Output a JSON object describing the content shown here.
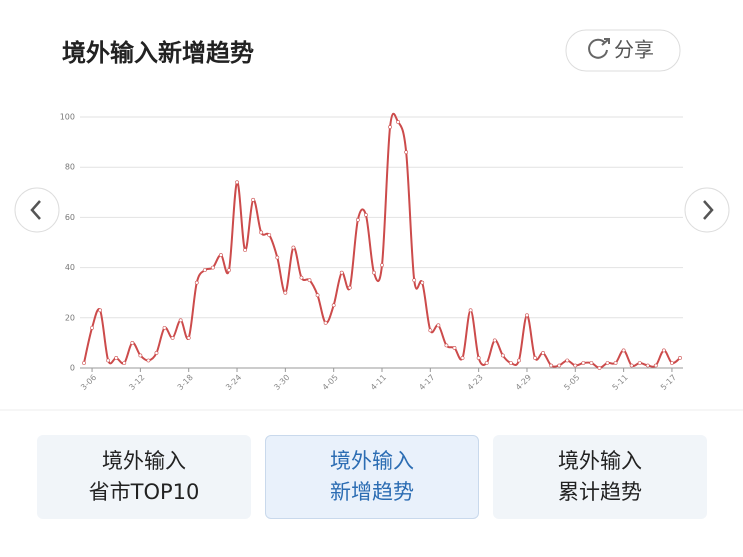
{
  "chart_data": {
    "type": "line",
    "title": "境外输入新增趋势",
    "categories": [
      null,
      "3-06",
      null,
      null,
      null,
      null,
      null,
      "3-12",
      null,
      null,
      null,
      null,
      null,
      "3-18",
      null,
      null,
      null,
      null,
      null,
      "3-24",
      null,
      null,
      null,
      null,
      null,
      "3-30",
      null,
      null,
      null,
      null,
      null,
      "4-05",
      null,
      null,
      null,
      null,
      null,
      "4-11",
      null,
      null,
      null,
      null,
      null,
      "4-17",
      null,
      null,
      null,
      null,
      null,
      "4-23",
      null,
      null,
      null,
      null,
      null,
      "4-29",
      null,
      null,
      null,
      null,
      null,
      "5-05",
      null,
      null,
      null,
      null,
      null,
      "5-11",
      null,
      null,
      null,
      null,
      null,
      "5-17",
      null
    ],
    "values": [
      2,
      16,
      23,
      3,
      4,
      2,
      10,
      5,
      3,
      6,
      16,
      12,
      19,
      12,
      34,
      39,
      40,
      45,
      39,
      74,
      47,
      67,
      54,
      53,
      44,
      30,
      48,
      36,
      35,
      29,
      18,
      25,
      38,
      32,
      59,
      61,
      38,
      41,
      96,
      98,
      86,
      35,
      34,
      15,
      17,
      9,
      8,
      4,
      23,
      4,
      2,
      11,
      5,
      2,
      3,
      21,
      4,
      6,
      1,
      1,
      3,
      1,
      2,
      2,
      0,
      2,
      2,
      7,
      1,
      2,
      1,
      1,
      7,
      2,
      4
    ],
    "color": "#cc4b4b",
    "ylim": [
      0,
      100
    ],
    "yticks": [
      0,
      20,
      40,
      60,
      80,
      100
    ],
    "grid": true
  },
  "share_button": "分享",
  "tabs": [
    [
      "境外输入",
      "省市TOP10"
    ],
    [
      "境外输入",
      "新增趋势"
    ],
    [
      "境外输入",
      "累计趋势"
    ]
  ]
}
